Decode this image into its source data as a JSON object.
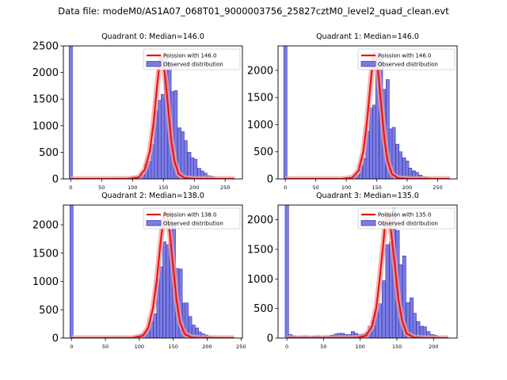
{
  "suptitle": "Data file: modeM0/AS1A07_068T01_9000003756_25827cztM0_level2_quad_clean.evt",
  "colors": {
    "bar_fill": "#7b7be6",
    "bar_edge": "#3838a0",
    "curve": "#e8161b",
    "curve_glow": "#f4a0a0"
  },
  "chart_data": [
    {
      "type": "bar",
      "title": "Quadrant 0: Median=146.0",
      "median": 146.0,
      "legend": {
        "location": "top-right",
        "entries": [
          "Poission with 146.0",
          "Observed distribution"
        ]
      },
      "xlim": [
        -12,
        278
      ],
      "ylim": [
        0,
        2500
      ],
      "xticks": [
        0,
        50,
        100,
        150,
        200,
        250
      ],
      "yticks": [
        0,
        500,
        1000,
        1500,
        2000,
        2500
      ],
      "bin_width": 5.35,
      "bins": [
        [
          0,
          2500
        ],
        [
          74,
          5
        ],
        [
          80,
          5
        ],
        [
          85,
          10
        ],
        [
          90,
          15
        ],
        [
          96,
          25
        ],
        [
          101,
          40
        ],
        [
          106,
          40
        ],
        [
          112,
          45
        ],
        [
          117,
          80
        ],
        [
          122,
          280
        ],
        [
          128,
          330
        ],
        [
          133,
          650
        ],
        [
          138,
          1280
        ],
        [
          144,
          1480
        ],
        [
          149,
          1590
        ],
        [
          154,
          2330
        ],
        [
          160,
          2200
        ],
        [
          165,
          1640
        ],
        [
          170,
          1660
        ],
        [
          176,
          960
        ],
        [
          181,
          890
        ],
        [
          186,
          720
        ],
        [
          192,
          500
        ],
        [
          197,
          400
        ],
        [
          202,
          370
        ],
        [
          208,
          200
        ],
        [
          213,
          150
        ],
        [
          218,
          110
        ],
        [
          224,
          60
        ],
        [
          229,
          50
        ],
        [
          234,
          20
        ],
        [
          240,
          10
        ],
        [
          245,
          5
        ]
      ],
      "poisson": [
        [
          0,
          0
        ],
        [
          95,
          2
        ],
        [
          110,
          30
        ],
        [
          120,
          180
        ],
        [
          128,
          520
        ],
        [
          134,
          1050
        ],
        [
          139,
          1650
        ],
        [
          143,
          2100
        ],
        [
          146,
          2330
        ],
        [
          149,
          2250
        ],
        [
          153,
          1900
        ],
        [
          158,
          1300
        ],
        [
          163,
          700
        ],
        [
          168,
          330
        ],
        [
          175,
          90
        ],
        [
          185,
          15
        ],
        [
          200,
          2
        ],
        [
          265,
          0
        ]
      ]
    },
    {
      "type": "bar",
      "title": "Quadrant 1: Median=146.0",
      "median": 146.0,
      "legend": {
        "location": "top-right",
        "entries": [
          "Poission with 146.0",
          "Observed distribution"
        ]
      },
      "xlim": [
        -12,
        282
      ],
      "ylim": [
        0,
        2450
      ],
      "xticks": [
        0,
        50,
        100,
        150,
        200,
        250
      ],
      "yticks": [
        0,
        500,
        1000,
        1500,
        2000
      ],
      "bin_width": 5.4,
      "bins": [
        [
          0,
          2450
        ],
        [
          76,
          5
        ],
        [
          81,
          5
        ],
        [
          86,
          8
        ],
        [
          92,
          10
        ],
        [
          97,
          20
        ],
        [
          103,
          25
        ],
        [
          108,
          30
        ],
        [
          114,
          45
        ],
        [
          119,
          80
        ],
        [
          124,
          250
        ],
        [
          130,
          380
        ],
        [
          135,
          880
        ],
        [
          141,
          1310
        ],
        [
          146,
          1360
        ],
        [
          151,
          2020
        ],
        [
          157,
          2260
        ],
        [
          162,
          1650
        ],
        [
          168,
          1830
        ],
        [
          173,
          920
        ],
        [
          178,
          950
        ],
        [
          184,
          640
        ],
        [
          189,
          500
        ],
        [
          195,
          390
        ],
        [
          200,
          330
        ],
        [
          205,
          200
        ],
        [
          211,
          150
        ],
        [
          216,
          120
        ],
        [
          222,
          70
        ],
        [
          227,
          45
        ],
        [
          232,
          30
        ],
        [
          238,
          15
        ],
        [
          243,
          8
        ],
        [
          248,
          5
        ]
      ],
      "poisson": [
        [
          0,
          0
        ],
        [
          95,
          2
        ],
        [
          110,
          25
        ],
        [
          120,
          150
        ],
        [
          128,
          500
        ],
        [
          134,
          1050
        ],
        [
          139,
          1650
        ],
        [
          143,
          2100
        ],
        [
          146,
          2320
        ],
        [
          149,
          2250
        ],
        [
          153,
          1900
        ],
        [
          158,
          1300
        ],
        [
          163,
          700
        ],
        [
          168,
          330
        ],
        [
          175,
          90
        ],
        [
          185,
          15
        ],
        [
          200,
          2
        ],
        [
          270,
          0
        ]
      ]
    },
    {
      "type": "bar",
      "title": "Quadrant 2: Median=138.0",
      "median": 138.0,
      "legend": {
        "location": "top-right",
        "entries": [
          "Poission with 138.0",
          "Observed distribution"
        ]
      },
      "xlim": [
        -12,
        252
      ],
      "ylim": [
        0,
        2350
      ],
      "xticks": [
        0,
        50,
        100,
        150,
        200,
        250
      ],
      "yticks": [
        0,
        500,
        1000,
        1500,
        2000
      ],
      "bin_width": 4.75,
      "bins": [
        [
          0,
          2350
        ],
        [
          75,
          5
        ],
        [
          80,
          8
        ],
        [
          85,
          10
        ],
        [
          90,
          15
        ],
        [
          94,
          30
        ],
        [
          99,
          40
        ],
        [
          104,
          60
        ],
        [
          109,
          80
        ],
        [
          113,
          170
        ],
        [
          118,
          300
        ],
        [
          123,
          430
        ],
        [
          128,
          1040
        ],
        [
          132,
          1260
        ],
        [
          137,
          1700
        ],
        [
          142,
          1650
        ],
        [
          147,
          2200
        ],
        [
          151,
          2000
        ],
        [
          156,
          1230
        ],
        [
          161,
          1220
        ],
        [
          166,
          620
        ],
        [
          170,
          620
        ],
        [
          175,
          380
        ],
        [
          180,
          230
        ],
        [
          185,
          180
        ],
        [
          189,
          110
        ],
        [
          194,
          75
        ],
        [
          199,
          55
        ],
        [
          203,
          25
        ],
        [
          208,
          15
        ],
        [
          213,
          5
        ]
      ],
      "poisson": [
        [
          0,
          0
        ],
        [
          90,
          2
        ],
        [
          105,
          40
        ],
        [
          113,
          180
        ],
        [
          120,
          520
        ],
        [
          126,
          1050
        ],
        [
          131,
          1650
        ],
        [
          135,
          2050
        ],
        [
          138,
          2230
        ],
        [
          141,
          2150
        ],
        [
          145,
          1850
        ],
        [
          150,
          1250
        ],
        [
          155,
          650
        ],
        [
          160,
          280
        ],
        [
          167,
          70
        ],
        [
          177,
          10
        ],
        [
          190,
          1
        ],
        [
          240,
          0
        ]
      ]
    },
    {
      "type": "bar",
      "title": "Quadrant 3: Median=135.0",
      "median": 135.0,
      "legend": {
        "location": "top-right",
        "entries": [
          "Poission with 135.0",
          "Observed distribution"
        ]
      },
      "xlim": [
        -12,
        232
      ],
      "ylim": [
        0,
        2250
      ],
      "xticks": [
        0,
        50,
        100,
        150,
        200
      ],
      "yticks": [
        0,
        500,
        1000,
        1500,
        2000
      ],
      "bin_width": 4.7,
      "bins": [
        [
          0,
          2250
        ],
        [
          5,
          60
        ],
        [
          10,
          40
        ],
        [
          15,
          20
        ],
        [
          20,
          25
        ],
        [
          24,
          40
        ],
        [
          29,
          20
        ],
        [
          34,
          20
        ],
        [
          38,
          30
        ],
        [
          43,
          40
        ],
        [
          48,
          20
        ],
        [
          52,
          30
        ],
        [
          57,
          40
        ],
        [
          62,
          50
        ],
        [
          67,
          70
        ],
        [
          71,
          80
        ],
        [
          76,
          80
        ],
        [
          80,
          60
        ],
        [
          85,
          60
        ],
        [
          90,
          110
        ],
        [
          94,
          80
        ],
        [
          99,
          60
        ],
        [
          104,
          70
        ],
        [
          109,
          100
        ],
        [
          113,
          200
        ],
        [
          118,
          300
        ],
        [
          123,
          460
        ],
        [
          127,
          580
        ],
        [
          132,
          970
        ],
        [
          137,
          1580
        ],
        [
          142,
          1620
        ],
        [
          146,
          2200
        ],
        [
          151,
          1820
        ],
        [
          155,
          1240
        ],
        [
          160,
          1390
        ],
        [
          165,
          600
        ],
        [
          170,
          680
        ],
        [
          174,
          420
        ],
        [
          179,
          280
        ],
        [
          184,
          200
        ],
        [
          188,
          190
        ],
        [
          193,
          110
        ],
        [
          198,
          60
        ],
        [
          202,
          50
        ],
        [
          207,
          20
        ],
        [
          212,
          10
        ]
      ],
      "poisson": [
        [
          0,
          0
        ],
        [
          95,
          2
        ],
        [
          108,
          40
        ],
        [
          116,
          200
        ],
        [
          122,
          520
        ],
        [
          127,
          1050
        ],
        [
          131,
          1550
        ],
        [
          134,
          1950
        ],
        [
          136,
          2120
        ],
        [
          139,
          2080
        ],
        [
          142,
          1800
        ],
        [
          147,
          1250
        ],
        [
          152,
          650
        ],
        [
          157,
          300
        ],
        [
          163,
          80
        ],
        [
          173,
          10
        ],
        [
          185,
          1
        ],
        [
          220,
          0
        ]
      ]
    }
  ]
}
